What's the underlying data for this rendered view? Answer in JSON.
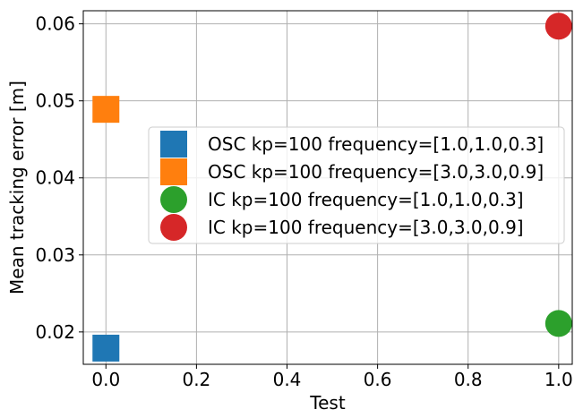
{
  "chart_data": {
    "type": "scatter",
    "title": "",
    "xlabel": "Test",
    "ylabel": "Mean tracking error [m]",
    "xlim": [
      -0.05,
      1.03
    ],
    "ylim": [
      0.0158,
      0.0617
    ],
    "xticks": [
      0.0,
      0.2,
      0.4,
      0.6,
      0.8,
      1.0
    ],
    "xtick_labels": [
      "0.0",
      "0.2",
      "0.4",
      "0.6",
      "0.8",
      "1.0"
    ],
    "yticks": [
      0.02,
      0.03,
      0.04,
      0.05,
      0.06
    ],
    "ytick_labels": [
      "0.02",
      "0.03",
      "0.04",
      "0.05",
      "0.06"
    ],
    "grid": true,
    "legend_position": "center-right",
    "series": [
      {
        "name": "OSC kp=100 frequency=[1.0,1.0,0.3]",
        "marker": "square",
        "color": "#1f77b4",
        "points": [
          {
            "x": 0.0,
            "y": 0.0179
          }
        ]
      },
      {
        "name": "OSC kp=100 frequency=[3.0,3.0,0.9]",
        "marker": "square",
        "color": "#ff7f0e",
        "points": [
          {
            "x": 0.0,
            "y": 0.0489
          }
        ]
      },
      {
        "name": "IC kp=100 frequency=[1.0,1.0,0.3]",
        "marker": "circle",
        "color": "#2ca02c",
        "points": [
          {
            "x": 1.0,
            "y": 0.0211
          }
        ]
      },
      {
        "name": "IC kp=100 frequency=[3.0,3.0,0.9]",
        "marker": "circle",
        "color": "#d62728",
        "points": [
          {
            "x": 1.0,
            "y": 0.0597
          }
        ]
      }
    ]
  }
}
